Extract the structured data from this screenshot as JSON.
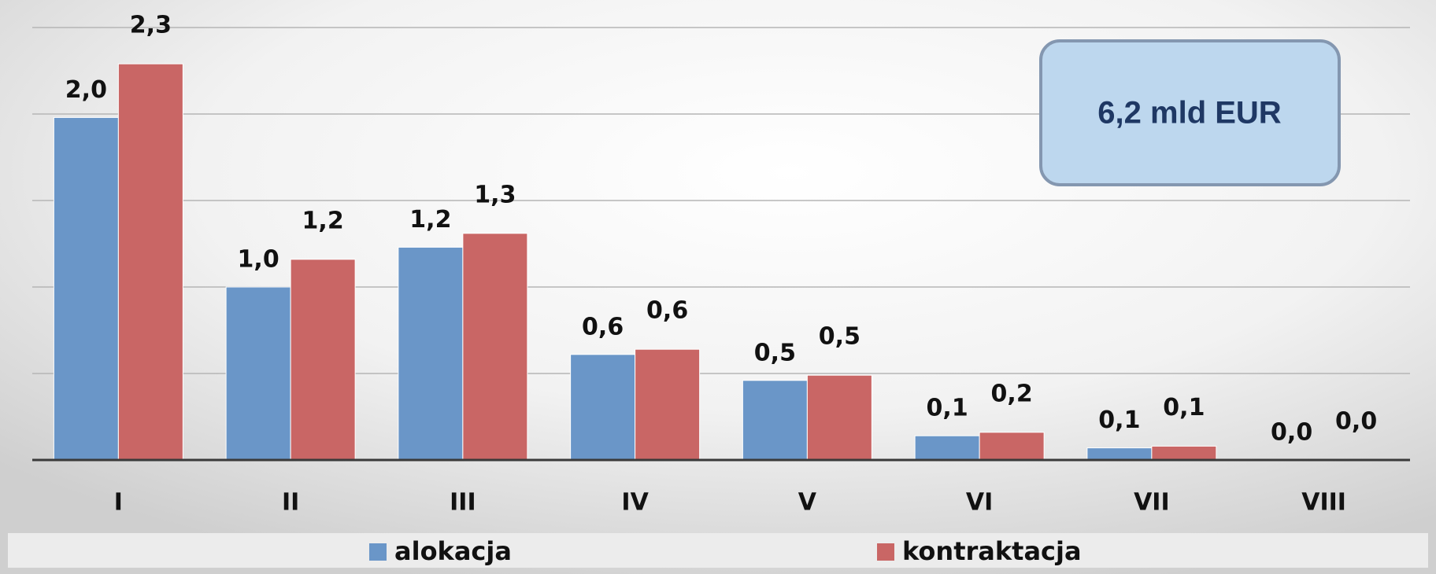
{
  "chart_data": {
    "type": "bar",
    "categories": [
      "I",
      "II",
      "III",
      "IV",
      "V",
      "VI",
      "VII",
      "VIII"
    ],
    "series": [
      {
        "name": "alokacja",
        "color": "#6a96c8",
        "values": [
          1.98,
          1.0,
          1.23,
          0.61,
          0.46,
          0.14,
          0.07,
          0.0
        ],
        "value_labels": [
          "2,0",
          "1,0",
          "1,2",
          "0,6",
          "0,5",
          "0,1",
          "0,1",
          "0,0"
        ]
      },
      {
        "name": "kontraktacja",
        "color": "#c96665",
        "values": [
          2.29,
          1.16,
          1.31,
          0.64,
          0.49,
          0.16,
          0.08,
          0.0
        ],
        "value_labels": [
          "2,3",
          "1,2",
          "1,3",
          "0,6",
          "0,5",
          "0,2",
          "0,1",
          "0,0"
        ]
      }
    ],
    "ylim": [
      0,
      2.5
    ],
    "yticks": [
      0,
      0.5,
      1,
      1.5,
      2,
      2.5
    ],
    "grid": true,
    "legend": "bottom",
    "annotation": "6,2 mld EUR"
  }
}
